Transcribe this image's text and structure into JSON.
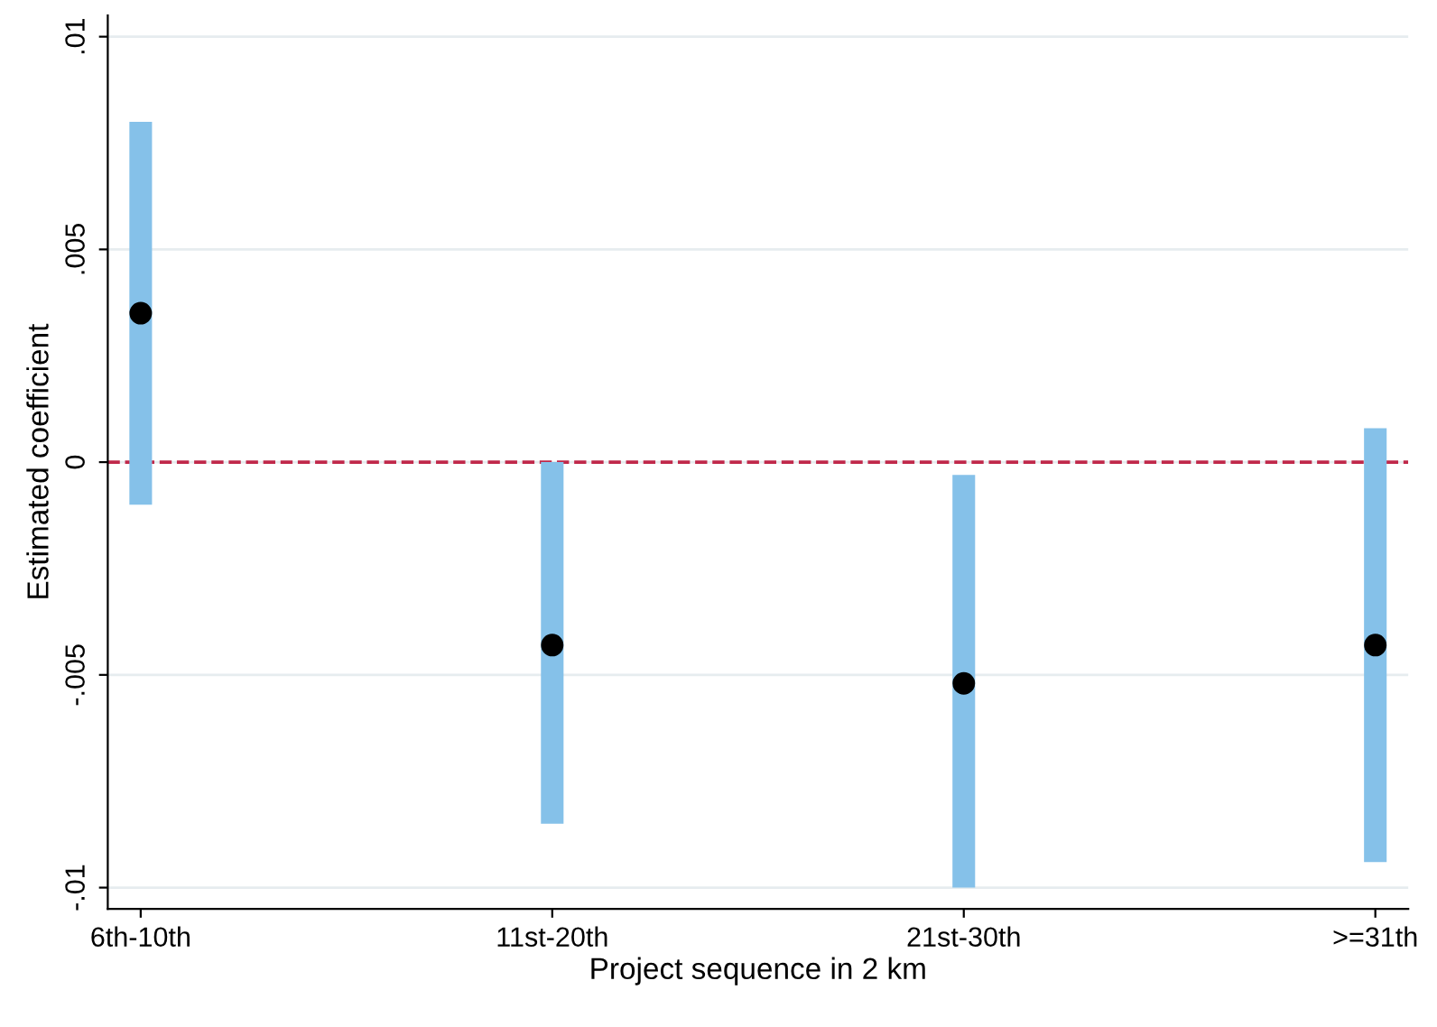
{
  "chart_data": {
    "type": "scatter",
    "xlabel": "Project sequence in 2 km",
    "ylabel": "Estimated coefficient",
    "categories": [
      "6th-10th",
      "11st-20th",
      "21st-30th",
      ">=31th"
    ],
    "series": [
      {
        "type": "bar",
        "color": "#85c1e9",
        "base": [
          -0.001,
          -0.0085,
          -0.01,
          -0.0094
        ],
        "values": [
          0.009,
          0.0085,
          0.0097,
          0.0102
        ]
      },
      {
        "color": "#000000",
        "values": [
          0.0035,
          -0.0043,
          -0.0052,
          -0.0043
        ]
      }
    ],
    "ylim": [
      -0.0105,
      0.0105
    ],
    "yticks": [
      {
        "value": -0.01,
        "label": "-.01"
      },
      {
        "value": -0.005,
        "label": "-.005"
      },
      {
        "value": 0,
        "label": "0"
      },
      {
        "value": 0.005,
        "label": ".005"
      },
      {
        "value": 0.01,
        "label": ".01"
      }
    ],
    "grid": "y",
    "marker": "circle",
    "ref_lines": [
      {
        "axis": "y",
        "value": 0,
        "color": "#c0284a",
        "line_style": "dashed"
      }
    ]
  }
}
